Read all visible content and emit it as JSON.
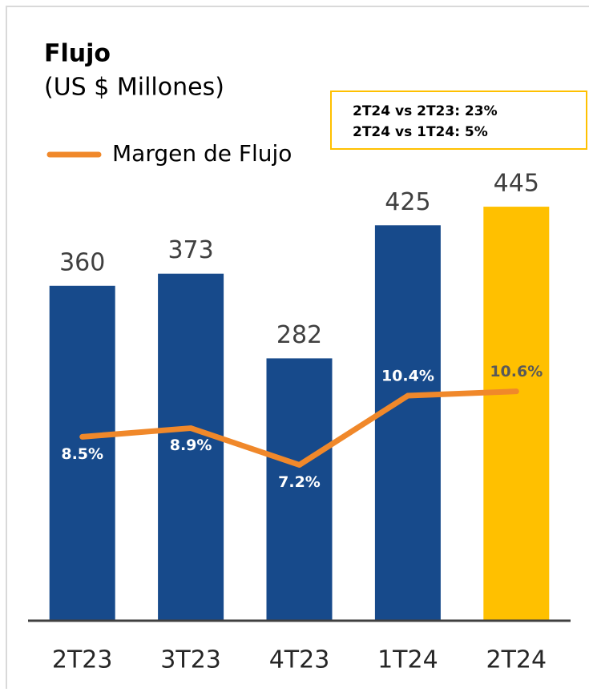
{
  "chart_data": {
    "type": "bar",
    "title": "Flujo",
    "subtitle": "(US $ Millones)",
    "annotations": [
      "2T24 vs 2T23: 23%",
      "2T24 vs 1T24: 5%"
    ],
    "categories": [
      "2T23",
      "3T23",
      "4T23",
      "1T24",
      "2T24"
    ],
    "ylim": [
      0,
      600
    ],
    "y2lim": [
      0,
      25.8
    ],
    "legend": "top-left",
    "series": [
      {
        "type": "bar",
        "values": [
          360,
          373,
          282,
          425,
          445
        ],
        "colors": [
          "#174a8b",
          "#174a8b",
          "#174a8b",
          "#174a8b",
          "#ffc000"
        ]
      },
      {
        "type": "line",
        "name": "Margen de Flujo",
        "axis": "y2",
        "color": "#f0882a",
        "values": [
          8.5,
          8.9,
          7.2,
          10.4,
          10.6
        ],
        "value_labels": [
          "8.5%",
          "8.9%",
          "7.2%",
          "10.4%",
          "10.6%"
        ]
      }
    ]
  }
}
